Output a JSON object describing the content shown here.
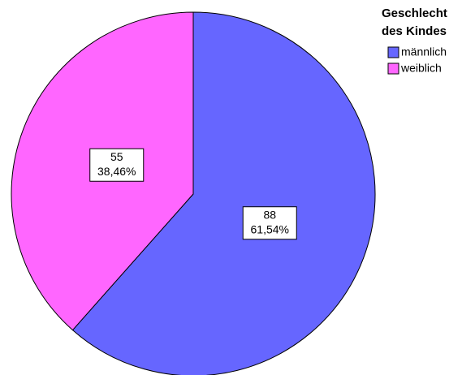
{
  "chart_data": {
    "type": "pie",
    "legend_title": [
      "Geschlecht",
      "des Kindes"
    ],
    "categories": [
      "männlich",
      "weiblich"
    ],
    "values": [
      88,
      55
    ],
    "percent_labels": [
      "61,54%",
      "38,46%"
    ],
    "colors": [
      "#6666ff",
      "#ff66ff"
    ],
    "legend": "top-right"
  }
}
